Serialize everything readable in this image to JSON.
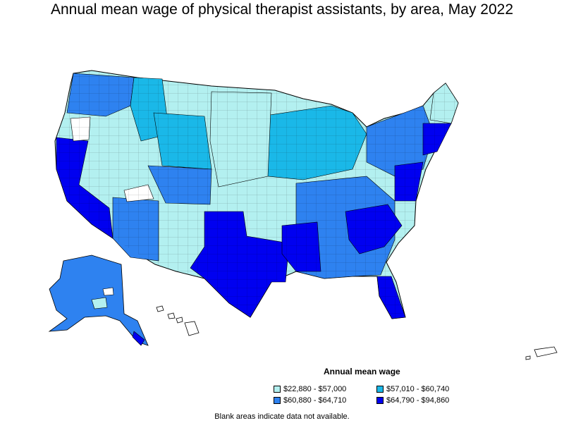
{
  "title": "Annual mean wage of physical therapist assistants, by area, May 2022",
  "legend": {
    "title": "Annual mean wage",
    "items": [
      {
        "label": "$22,880 - $57,000",
        "color": "#b3f0f0"
      },
      {
        "label": "$57,010 - $60,740",
        "color": "#1ab8e8"
      },
      {
        "label": "$60,880 - $64,710",
        "color": "#2e82f0"
      },
      {
        "label": "$64,790 - $94,860",
        "color": "#0000f0"
      }
    ]
  },
  "note": "Blank areas indicate data not available.",
  "colors": {
    "outline": "#000000",
    "background": "#ffffff",
    "no_data": "#ffffff"
  }
}
